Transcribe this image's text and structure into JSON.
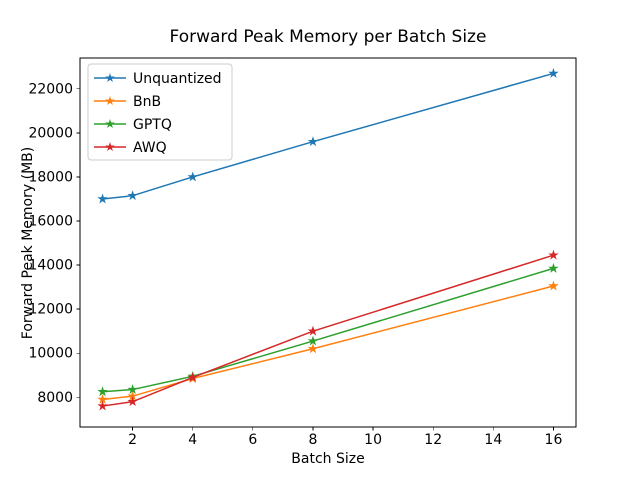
{
  "chart_data": {
    "type": "line",
    "title": "Forward Peak Memory per Batch Size",
    "xlabel": "Batch Size",
    "ylabel": "Forward Peak Memory (MB)",
    "x": [
      1,
      2,
      4,
      8,
      16
    ],
    "series": [
      {
        "name": "Unquantized",
        "color": "#1f77b4",
        "values": [
          17000,
          17150,
          18000,
          19600,
          22700
        ]
      },
      {
        "name": "BnB",
        "color": "#ff7f0e",
        "values": [
          7900,
          8050,
          8850,
          10200,
          13050
        ]
      },
      {
        "name": "GPTQ",
        "color": "#2ca02c",
        "values": [
          8250,
          8350,
          8950,
          10550,
          13850
        ]
      },
      {
        "name": "AWQ",
        "color": "#d62728",
        "values": [
          7600,
          7800,
          8900,
          11000,
          14450
        ]
      }
    ],
    "marker": "star",
    "line_width": 1.5,
    "xlim": [
      0.25,
      16.75
    ],
    "ylim": [
      6650,
      23400
    ],
    "xticks": [
      2,
      4,
      6,
      8,
      10,
      12,
      14,
      16
    ],
    "yticks": [
      8000,
      10000,
      12000,
      14000,
      16000,
      18000,
      20000,
      22000
    ],
    "grid": false,
    "legend_position": "upper left",
    "spine_color": "#000000",
    "legend_border_color": "#cccccc",
    "background_color": "#ffffff"
  }
}
